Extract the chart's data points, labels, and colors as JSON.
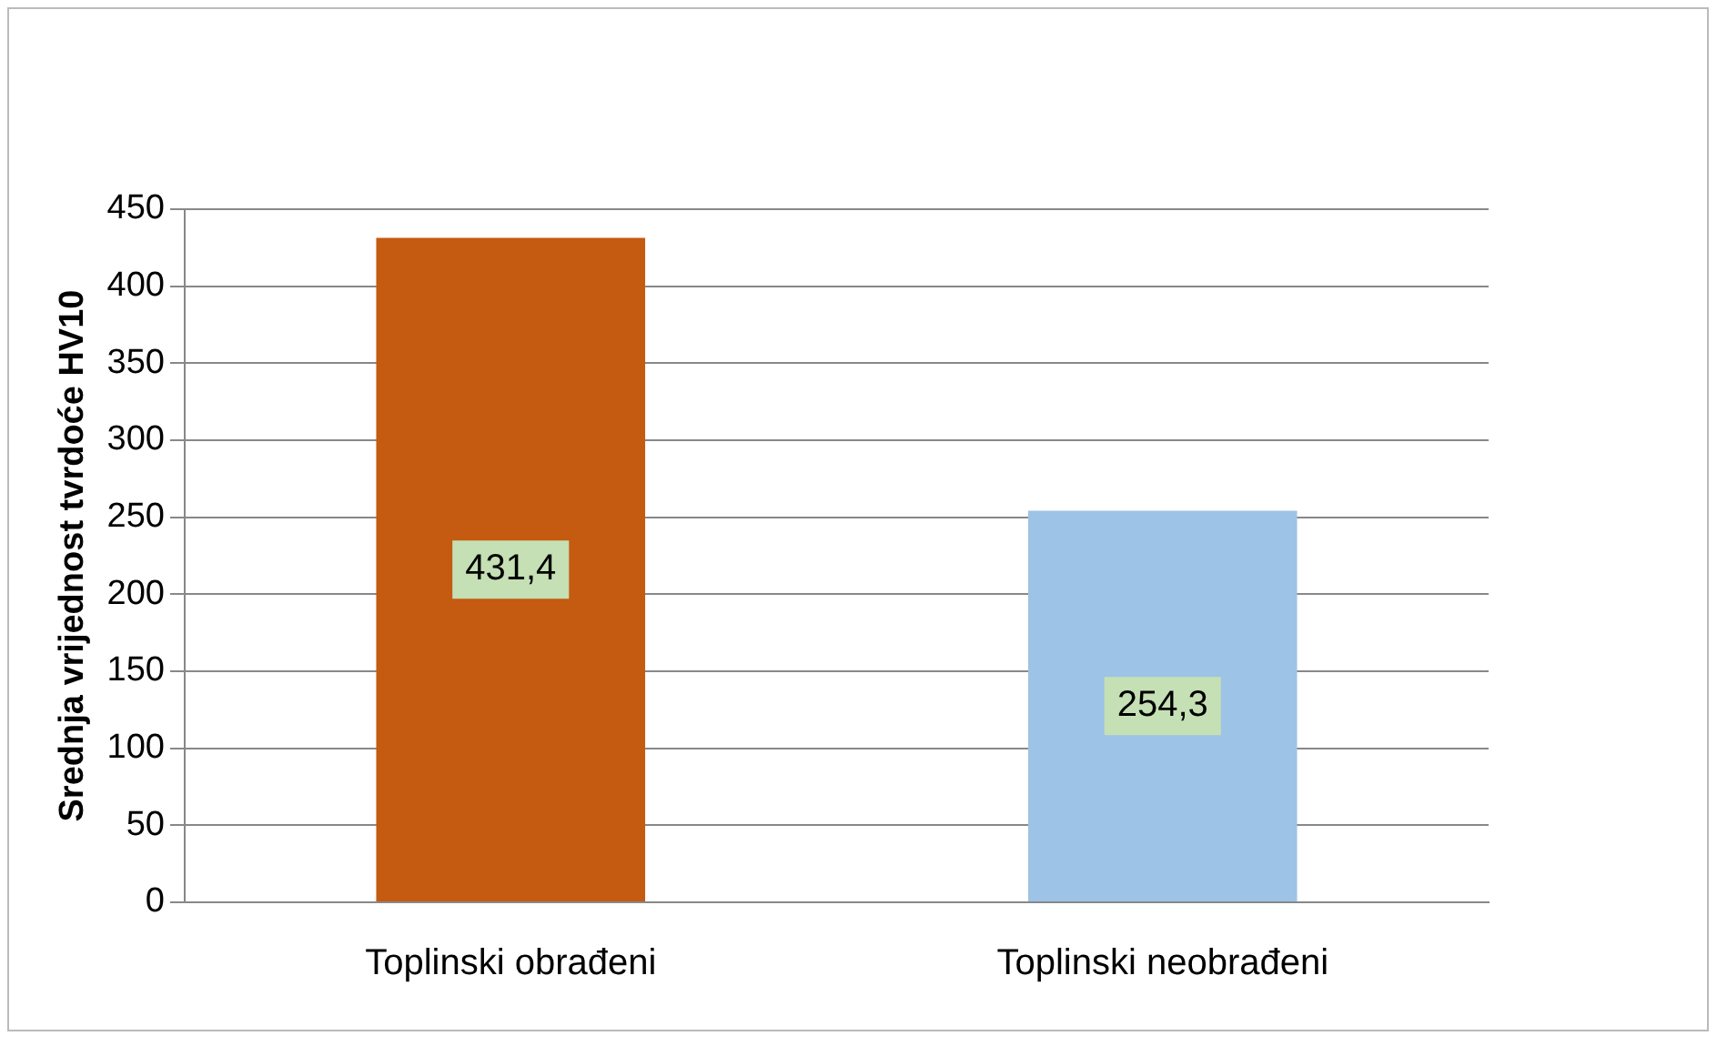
{
  "chart_data": {
    "type": "bar",
    "ylabel": "Srednja vrijednost tvrdoće HV10",
    "categories": [
      "Toplinski obrađeni",
      "Toplinski neobrađeni"
    ],
    "values": [
      431.4,
      254.3
    ],
    "colors": [
      "#c55a11",
      "#9dc3e6"
    ],
    "value_labels": [
      "431,4",
      "254,3"
    ],
    "ylim": [
      0,
      450
    ],
    "yticks": [
      0,
      50,
      100,
      150,
      200,
      250,
      300,
      350,
      400,
      450
    ],
    "grid": "y"
  }
}
